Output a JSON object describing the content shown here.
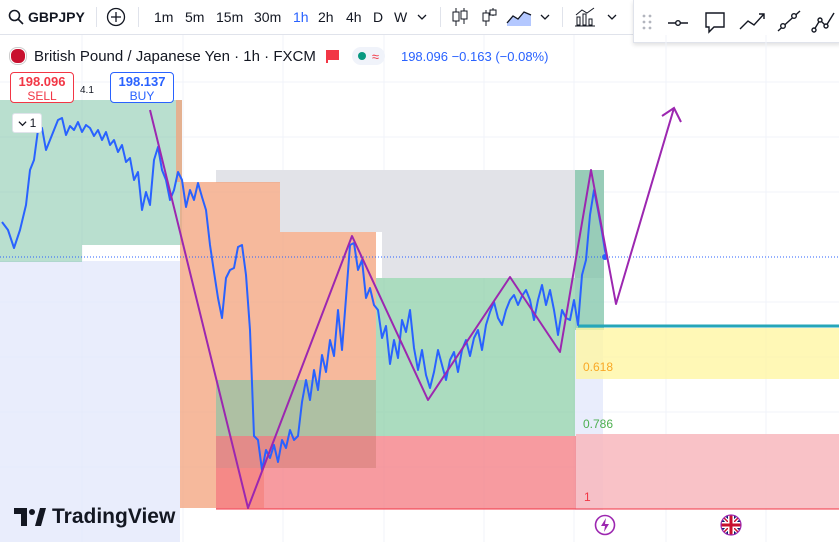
{
  "toolbar": {
    "symbol": "GBPJPY",
    "intervals": [
      "1m",
      "5m",
      "15m",
      "30m",
      "1h",
      "2h",
      "4h",
      "D",
      "W"
    ],
    "active_interval": "1h",
    "icons": [
      "search-icon",
      "add-symbol-icon",
      "candles-icon",
      "bars-icon",
      "area-icon",
      "chevron-down-icon",
      "indicators-icon",
      "chevron-down-icon"
    ]
  },
  "drawing_toolbar": {
    "icons": [
      "drag-handle-icon",
      "horizontal-line-icon",
      "callout-icon",
      "trend-line-icon",
      "ray-icon",
      "path-icon"
    ]
  },
  "legend": {
    "title": "British Pound / Japanese Yen · 1h · FXCM",
    "price": "198.096",
    "change": "−0.163 (−0.08%)",
    "colors": {
      "flag": "#f23645",
      "market_open": "#089981",
      "quote": "#2962ff"
    }
  },
  "trade": {
    "sell_price": "198.096",
    "sell_label": "SELL",
    "buy_price": "198.137",
    "buy_label": "BUY",
    "spread": "4.1"
  },
  "collapse_label": "1",
  "fib_labels": {
    "l0618": "0.618",
    "l0786": "0.786",
    "l1": "1"
  },
  "branding": {
    "logo_text": "TradingView"
  },
  "colors": {
    "price_line": "#2962ff",
    "zigzag": "#9c27b0",
    "fib_618_line": "#00bcd4",
    "fib_786_text": "#4caf50",
    "fib_1_text": "#f23645"
  }
}
